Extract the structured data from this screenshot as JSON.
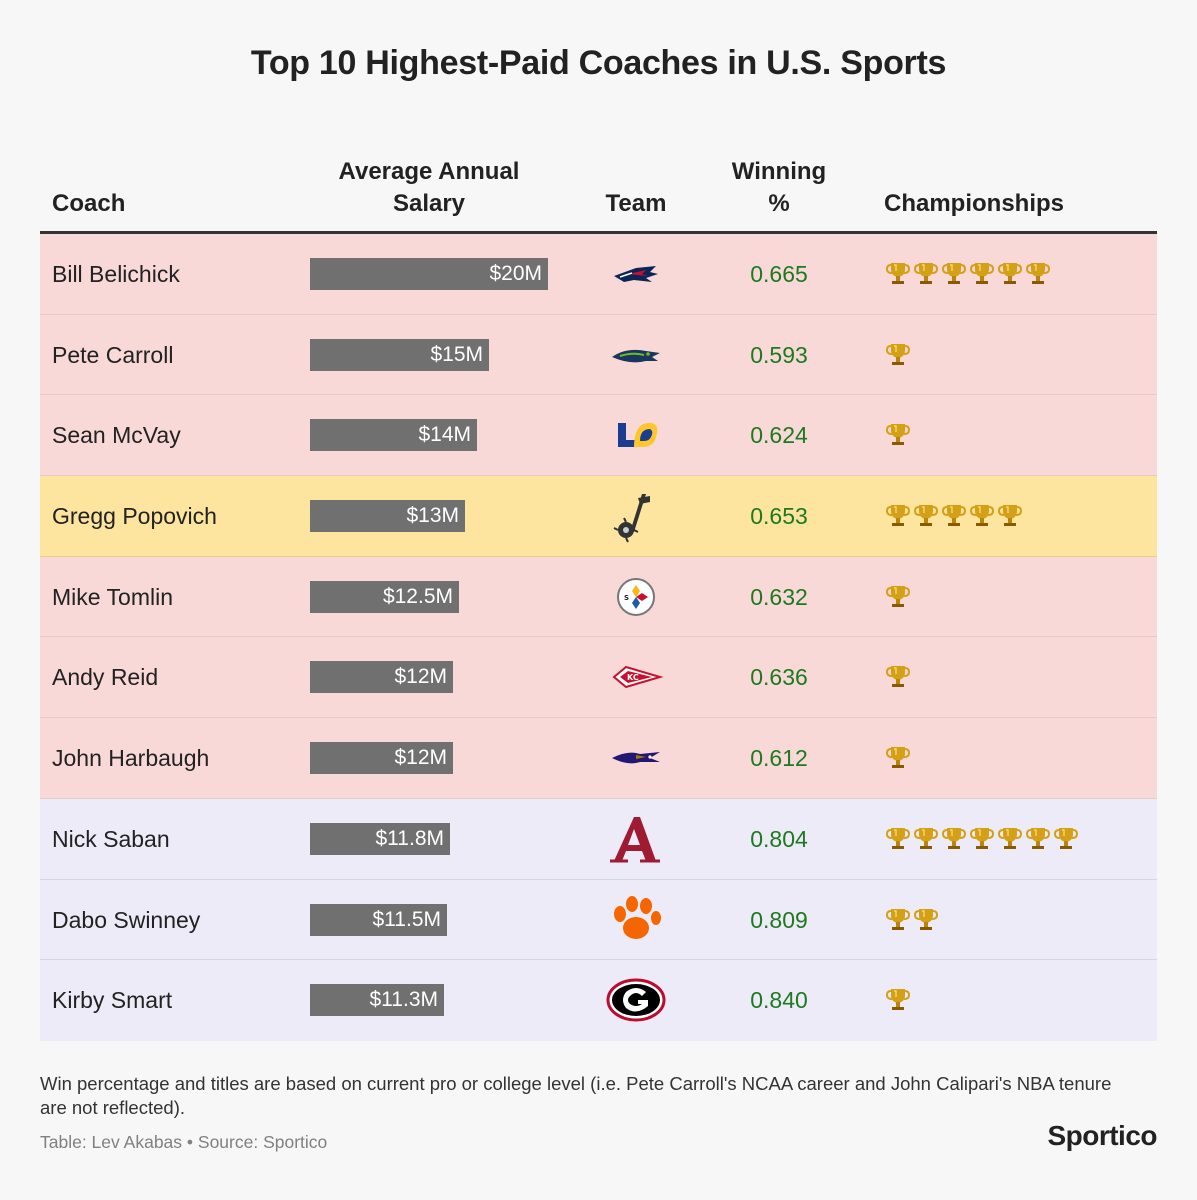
{
  "title": "Top 10 Highest-Paid Coaches in U.S. Sports",
  "colors": {
    "nfl_row": "#f8d9d7",
    "nba_row": "#fde49f",
    "ncaa_row": "#ecebf7",
    "bar": "#707070",
    "win": "#1e7a1e",
    "trophy": "#d4a017"
  },
  "chart_data": {
    "type": "table",
    "title": "Top 10 Highest-Paid Coaches in U.S. Sports",
    "columns": [
      "Coach",
      "Average Annual Salary",
      "Team",
      "Winning %",
      "Championships"
    ],
    "salary_max": 20,
    "rows": [
      {
        "coach": "Bill Belichick",
        "salary": 20,
        "salary_label": "$20M",
        "team": "patriots-logo",
        "league": "nfl",
        "win": "0.665",
        "titles": 6
      },
      {
        "coach": "Pete Carroll",
        "salary": 15,
        "salary_label": "$15M",
        "team": "seahawks-logo",
        "league": "nfl",
        "win": "0.593",
        "titles": 1
      },
      {
        "coach": "Sean McVay",
        "salary": 14,
        "salary_label": "$14M",
        "team": "rams-logo",
        "league": "nfl",
        "win": "0.624",
        "titles": 1
      },
      {
        "coach": "Gregg Popovich",
        "salary": 13,
        "salary_label": "$13M",
        "team": "spurs-logo",
        "league": "nba",
        "win": "0.653",
        "titles": 5
      },
      {
        "coach": "Mike Tomlin",
        "salary": 12.5,
        "salary_label": "$12.5M",
        "team": "steelers-logo",
        "league": "nfl",
        "win": "0.632",
        "titles": 1
      },
      {
        "coach": "Andy Reid",
        "salary": 12,
        "salary_label": "$12M",
        "team": "chiefs-logo",
        "league": "nfl",
        "win": "0.636",
        "titles": 1
      },
      {
        "coach": "John Harbaugh",
        "salary": 12,
        "salary_label": "$12M",
        "team": "ravens-logo",
        "league": "nfl",
        "win": "0.612",
        "titles": 1
      },
      {
        "coach": "Nick Saban",
        "salary": 11.8,
        "salary_label": "$11.8M",
        "team": "alabama-logo",
        "league": "ncaa",
        "win": "0.804",
        "titles": 7
      },
      {
        "coach": "Dabo Swinney",
        "salary": 11.5,
        "salary_label": "$11.5M",
        "team": "clemson-logo",
        "league": "ncaa",
        "win": "0.809",
        "titles": 2
      },
      {
        "coach": "Kirby Smart",
        "salary": 11.3,
        "salary_label": "$11.3M",
        "team": "georgia-logo",
        "league": "ncaa",
        "win": "0.840",
        "titles": 1
      }
    ]
  },
  "headers": {
    "coach": "Coach",
    "salary_line1": "Average Annual",
    "salary_line2": "Salary",
    "team": "Team",
    "win_line1": "Winning",
    "win_line2": "%",
    "champ": "Championships"
  },
  "footnote": "Win percentage and titles are based on current pro or college level (i.e. Pete Carroll's NCAA career and John Calipari's NBA tenure are not reflected).",
  "credit": "Table: Lev Akabas • Source: Sportico",
  "brand": "Sportico"
}
